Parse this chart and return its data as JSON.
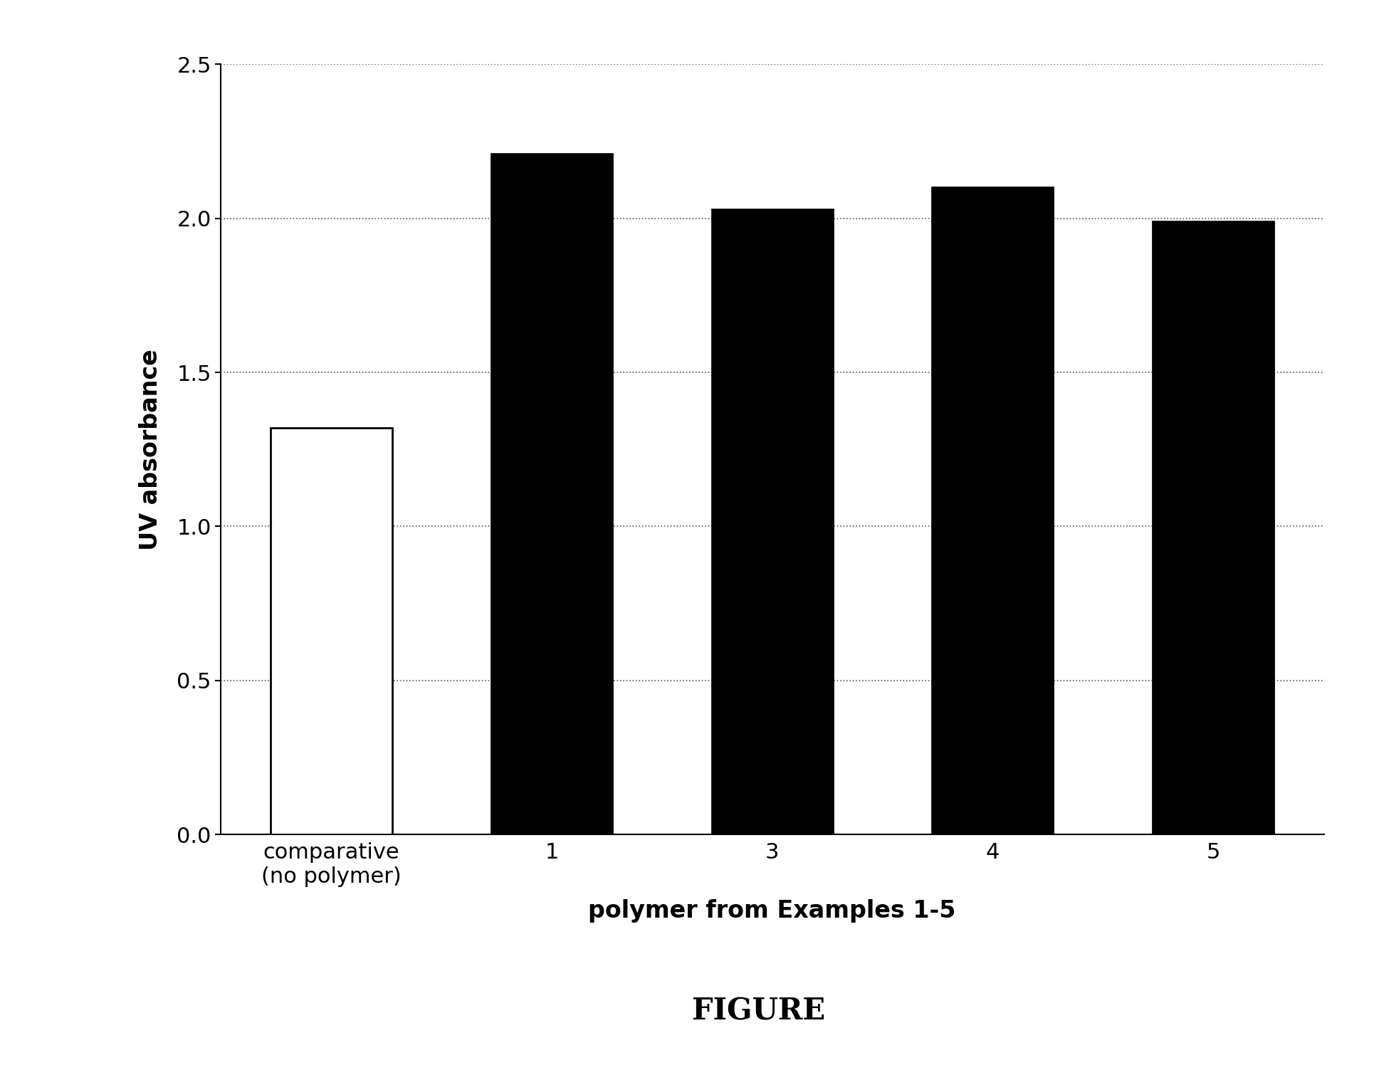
{
  "categories": [
    "comparative\n(no polymer)",
    "1",
    "3",
    "4",
    "5"
  ],
  "values": [
    1.32,
    2.21,
    2.03,
    2.1,
    1.99
  ],
  "bar_colors": [
    "#ffffff",
    "#000000",
    "#000000",
    "#000000",
    "#000000"
  ],
  "bar_edge_colors": [
    "#000000",
    "#000000",
    "#000000",
    "#000000",
    "#000000"
  ],
  "bar_edge_widths": [
    2.0,
    2.0,
    2.0,
    2.0,
    2.0
  ],
  "ylabel": "UV absorbance",
  "xlabel": "polymer from Examples 1-5",
  "ylim": [
    0.0,
    2.5
  ],
  "yticks": [
    0.0,
    0.5,
    1.0,
    1.5,
    2.0,
    2.5
  ],
  "figure_title": "FIGURE",
  "background_color": "#ffffff",
  "bar_width": 0.55,
  "ylabel_fontsize": 24,
  "xlabel_fontsize": 24,
  "tick_fontsize": 22,
  "figure_title_fontsize": 30,
  "spine_linewidth": 1.5
}
